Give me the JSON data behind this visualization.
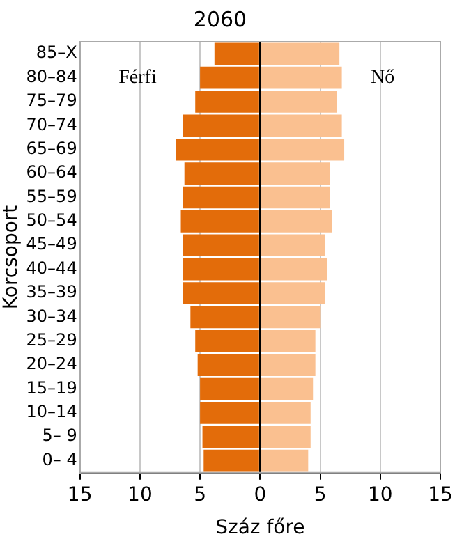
{
  "chart_data": {
    "type": "bar",
    "orientation": "horizontal",
    "stacked": true,
    "title": "2060",
    "xlabel": "Száz főre",
    "ylabel": "Korcsoport",
    "categories": [
      "85–X",
      "80–84",
      "75–79",
      "70–74",
      "65–69",
      "60–64",
      "55–59",
      "50–54",
      "45–49",
      "40–44",
      "35–39",
      "30–34",
      "25–29",
      "20–24",
      "15–19",
      "10–14",
      "5– 9",
      "0– 4"
    ],
    "series": [
      {
        "color": "#e36c0a",
        "values": [
          -3.8,
          -5.0,
          -5.4,
          -6.4,
          -7.0,
          -6.3,
          -6.4,
          -6.6,
          -6.4,
          -6.4,
          -6.4,
          -5.8,
          -5.4,
          -5.2,
          -5.0,
          -5.0,
          -4.8,
          -4.7
        ]
      },
      {
        "color": "#fac090",
        "values": [
          6.6,
          6.8,
          6.4,
          6.8,
          7.0,
          5.8,
          5.8,
          6.0,
          5.4,
          5.6,
          5.4,
          5.0,
          4.6,
          4.6,
          4.4,
          4.2,
          4.2,
          4.0
        ]
      }
    ],
    "xlim": [
      -15,
      15
    ],
    "xticks": [
      {
        "value": -15,
        "label": "15"
      },
      {
        "value": -10,
        "label": "10"
      },
      {
        "value": -5,
        "label": "5"
      },
      0,
      5,
      10,
      15
    ],
    "grid": "x",
    "legend": false,
    "annotations": [
      "Férfi",
      "Nő"
    ]
  }
}
